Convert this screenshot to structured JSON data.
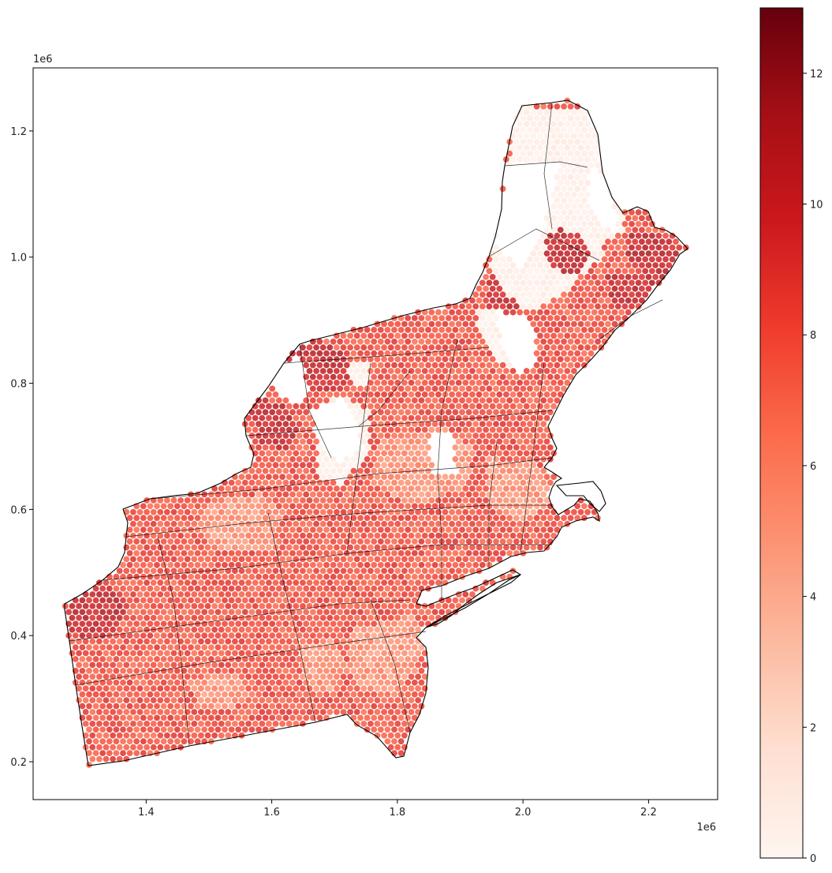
{
  "chart_data": {
    "type": "map",
    "title": "",
    "xlabel": "",
    "ylabel": "",
    "x_offset_label": "1e6",
    "y_offset_label": "1e6",
    "x_ticks": [
      {
        "value": 1.4,
        "label": "1.4"
      },
      {
        "value": 1.6,
        "label": "1.6"
      },
      {
        "value": 1.8,
        "label": "1.8"
      },
      {
        "value": 2.0,
        "label": "2.0"
      },
      {
        "value": 2.2,
        "label": "2.2"
      }
    ],
    "y_ticks": [
      {
        "value": 0.2,
        "label": "0.2"
      },
      {
        "value": 0.4,
        "label": "0.4"
      },
      {
        "value": 0.6,
        "label": "0.6"
      },
      {
        "value": 0.8,
        "label": "0.8"
      },
      {
        "value": 1.0,
        "label": "1.0"
      },
      {
        "value": 1.2,
        "label": "1.2"
      }
    ],
    "xlim": [
      1.22,
      2.31
    ],
    "ylim": [
      0.14,
      1.3
    ],
    "colorbar": {
      "colormap": "Reds",
      "range": [
        0,
        13
      ],
      "ticks": [
        {
          "value": 0,
          "label": "0"
        },
        {
          "value": 2,
          "label": "2"
        },
        {
          "value": 4,
          "label": "4"
        },
        {
          "value": 6,
          "label": "6"
        },
        {
          "value": 8,
          "label": "8"
        },
        {
          "value": 10,
          "label": "10"
        },
        {
          "value": 12,
          "label": "12"
        }
      ]
    },
    "colors": {
      "low": "#fff5f0",
      "mid": "#fb6a4a",
      "high": "#67000d",
      "outline": "#000000"
    }
  }
}
